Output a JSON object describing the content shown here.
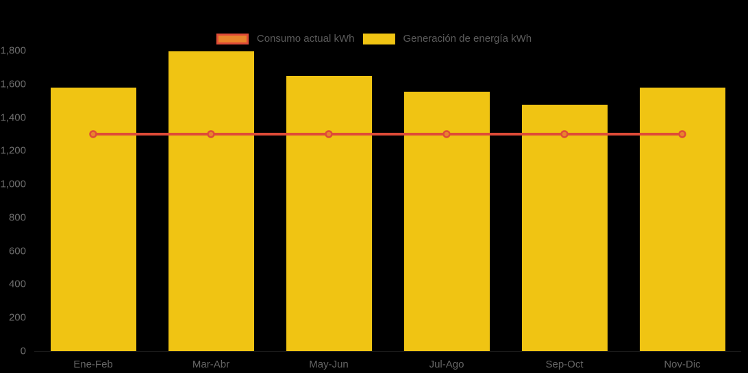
{
  "chart_data": {
    "type": "bar",
    "title": "",
    "categories": [
      "Ene-Feb",
      "Mar-Abr",
      "May-Jun",
      "Jul-Ago",
      "Sep-Oct",
      "Nov-Dic"
    ],
    "series": [
      {
        "name": "Consumo actual kWh",
        "type": "line",
        "values": [
          1300,
          1300,
          1300,
          1300,
          1300,
          1300
        ],
        "line_color": "#df4b38",
        "marker_fill": "#e8842c",
        "marker_stroke": "#df4b38"
      },
      {
        "name": "Generación de energía kWh",
        "type": "bar",
        "values": [
          1580,
          1795,
          1650,
          1555,
          1475,
          1580
        ],
        "color": "#f0c413"
      }
    ],
    "xlabel": "",
    "ylabel": "",
    "ylim": [
      0,
      1800
    ],
    "ytick_step": 200,
    "ytick_labels": [
      "0",
      "200",
      "400",
      "600",
      "800",
      "1,000",
      "1,200",
      "1,400",
      "1,600",
      "1,800"
    ],
    "grid": false,
    "legend_position": "top",
    "background": "#000000",
    "axis_text_color": "#6e6e6e",
    "legend_text_color": "#5c5c5c"
  }
}
